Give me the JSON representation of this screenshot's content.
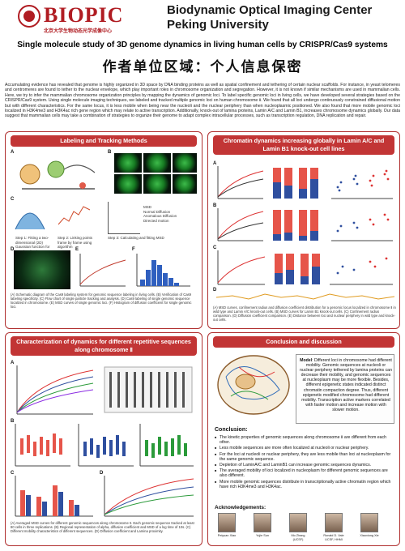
{
  "header": {
    "brand": "BIOPIC",
    "brand_subtitle": "北京大学生物动态光学成像中心",
    "center_name_line1": "Biodynamic Optical Imaging Center",
    "center_name_line2": "Peking University"
  },
  "poster": {
    "title": "Single molecule study of 3D genome dynamics in living human cells by CRISPR/Cas9 systems",
    "redacted_notice": "作者单位区域：个人信息保密"
  },
  "abstract": "Accumulating evidence has revealed that genome is highly organized in 3D space by DNA binding proteins as well as spatial confinement and tethering of certain nuclear scaffolds. For instance, in yeast telomeres and centromeres are found to tether to the nuclear envelope, which play important roles in chromosome organization and segregation. However, it is not known if similar mechanisms are used in mammalian cells. Here, we try to infer the mammalian chromosome organization principles by mapping the dynamics of genomic loci. To label specific genomic loci in living cells, we have developed several strategies based on the CRISPR/Cas9 system. Using single molecule imaging techniques, we labeled and tracked multiple genomic loci on human chromosome Ⅱ. We found that all loci undergo continuously constrained diffusional motion but with different characteristics. For the same locus, it is less mobile when being near the nucleoli and the nuclear periphery than when nucleoplasmic positioned. We also found that more mobile genomic loci localized in H3K4me3 and H3K4ac rich gene region which may relate to active transcription. Additionally, knock-out of lamina proteins, Lamin A/C and Lamin B1, increases chromosome dynamics globally. Our data suggest that mammalian cells may take a combination of strategies to organize their genome to adapt complex intracellular processes, such as transcription regulation, DNA replication and repair.",
  "panels": {
    "labeling": {
      "title": "Labeling and Tracking Methods",
      "fig_labels": [
        "A",
        "B",
        "C",
        "D",
        "E",
        "F"
      ],
      "step1": "Step 1: Fitting a two-dimensional (2D) Gaussian function for spot localization",
      "step2": "Step 2: Linking points frame by frame using algorithm",
      "step3": "Step 3: Calculating and fitting MSD",
      "legend": [
        "MSD",
        "Normal Diffusion",
        "Anomalous Diffusion",
        "Directed motion"
      ],
      "caption": "(A) Schematic diagram of the Cas9 labeling system for genomic sequence labeling in living cells. (B) Verification of Cas9 labeling specificity. (C) Flow chart of single particle tracking and analysis. (D) Cas9 labeling of single genomic sequence localized in chromosome. (E) MSD curves of single genomic loci. (F) Histogram of diffusion coefficient for single genomic loci."
    },
    "chromatin": {
      "title": "Chromatin dynamics increasing globally in Lamin A/C and Lamin B1 knock-out cell lines",
      "fig_labels": [
        "A",
        "B",
        "C",
        "D",
        "E"
      ],
      "caption": "(A) MSD curves, confinement radius and diffusion coefficient distribution for a genomic locus localized in chromosome Ⅱ in wild type and Lamin A/C knock-out cells. (B) MSD curves for Lamin B1 knock-out cells. (C) Confinement radius comparison. (D) Diffusion coefficient comparison. (E) Distance between loci and nuclear periphery in wild type and knock-out cells."
    },
    "characterization": {
      "title": "Characterization of dynamics for different repetitive sequences along chromosome Ⅱ",
      "fig_labels": [
        "A",
        "B",
        "C",
        "D"
      ],
      "caption": "(A) Averaged MSD curves for different genomic sequences along chromosome Ⅱ. Each genomic sequence tracked at least 80 cells in three replications. (B) Regional representation of alpha, diffusion coefficient and MSD of a log time of 10s. (C) Different mobility characteristics of different sequences. (D) Diffusion coefficient and Lamina proximity."
    },
    "conclusion": {
      "title": "Conclusion and discussion",
      "model_heading": "Model",
      "model_text": ": Different loci in chromosome had different mobility. Genomic sequences at nucleoli or nuclear periphery tethered by lamina proteins can decrease their mobility, and genomic sequences at nucleoplasm may be more flexible. Besides, different epigenetic states indicated distinct chromatin compaction degree. Thus, different epigenetic modified chromosome had different mobility. Transcription active markers correlated with faster motion and increase motion with slower motion.",
      "conclusion_heading": "Conclusion:",
      "bullets": [
        "The kinetic properties of genomic sequences along chromosome Ⅱ are different from each other.",
        "Less mobile sequences are more often localized at nucleoli or nuclear periphery.",
        "For the loci at nucleoli or nuclear periphery, they are less mobile than loci at nucleoplasm for the same genomic sequence.",
        "Depletion of LaminA/C and LaminB1 can increase genomic sequences dynamics.",
        "The averaged mobility of loci localized in nucleoplasm for different genomic sequences are also different.",
        "More mobile genomic sequences distribute in transcriptionally active chromatin region which have rich H3K4me3 and H3K4ac."
      ],
      "ack_heading": "Acknowledgements:",
      "people": [
        "Peiyuan Xiao",
        "Yujie Sun",
        "Mo Zhang",
        "Ronald D. Vale",
        "Xiaoxiong Xie"
      ],
      "people_affil": [
        "",
        "",
        "(UCSF)",
        "UCSF, HHMI",
        ""
      ]
    }
  }
}
